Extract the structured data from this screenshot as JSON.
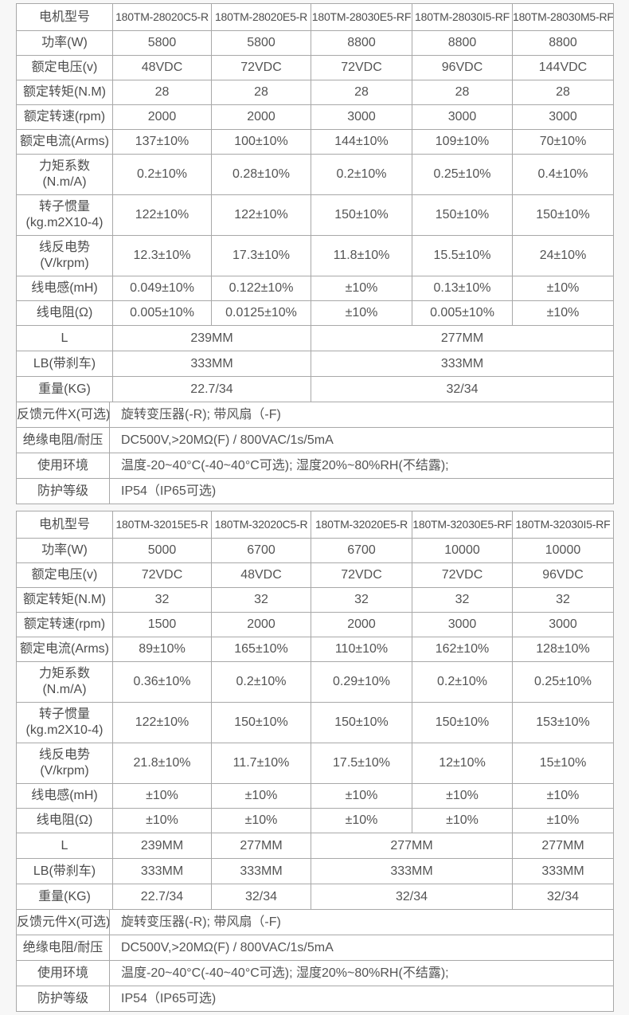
{
  "page": {
    "background_color": "#f7f7f7",
    "cell_background": "#ffffff",
    "border_color": "#a8a8a8",
    "text_color": "#545454"
  },
  "tables": [
    {
      "header": {
        "label": "电机型号",
        "models": [
          "180TM-28020C5-R",
          "180TM-28020E5-R",
          "180TM-28030E5-RF",
          "180TM-28030I5-RF",
          "180TM-28030M5-RF"
        ]
      },
      "rows": [
        {
          "label": "功率(W)",
          "values": [
            "5800",
            "5800",
            "8800",
            "8800",
            "8800"
          ]
        },
        {
          "label": "额定电压(v)",
          "values": [
            "48VDC",
            "72VDC",
            "72VDC",
            "96VDC",
            "144VDC"
          ]
        },
        {
          "label": "额定转矩(N.M)",
          "values": [
            "28",
            "28",
            "28",
            "28",
            "28"
          ]
        },
        {
          "label": "额定转速(rpm)",
          "values": [
            "2000",
            "2000",
            "3000",
            "3000",
            "3000"
          ]
        },
        {
          "label": "额定电流(Arms)",
          "values": [
            "137±10%",
            "100±10%",
            "144±10%",
            "109±10%",
            "70±10%"
          ]
        },
        {
          "label": "力矩系数",
          "label2": "(N.m/A)",
          "tall": true,
          "values": [
            "0.2±10%",
            "0.28±10%",
            "0.2±10%",
            "0.25±10%",
            "0.4±10%"
          ]
        },
        {
          "label": "转子惯量",
          "label2": "(kg.m2X10-4)",
          "tall": true,
          "values": [
            "122±10%",
            "122±10%",
            "150±10%",
            "150±10%",
            "150±10%"
          ]
        },
        {
          "label": "线反电势",
          "label2": "(V/krpm)",
          "tall": true,
          "values": [
            "12.3±10%",
            "17.3±10%",
            "11.8±10%",
            "15.5±10%",
            "24±10%"
          ]
        },
        {
          "label": "线电感(mH)",
          "values": [
            "0.049±10%",
            "0.122±10%",
            "±10%",
            "0.13±10%",
            "±10%"
          ]
        },
        {
          "label": "线电阻(Ω)",
          "values": [
            "0.005±10%",
            "0.0125±10%",
            "±10%",
            "0.005±10%",
            "±10%"
          ]
        },
        {
          "label": "L",
          "cells": [
            {
              "text": "239MM",
              "span": 2
            },
            {
              "text": "277MM",
              "span": 3
            }
          ]
        },
        {
          "label": "LB(带刹车)",
          "cells": [
            {
              "text": "333MM",
              "span": 2
            },
            {
              "text": "333MM",
              "span": 3
            }
          ]
        },
        {
          "label": "重量(KG)",
          "cells": [
            {
              "text": "22.7/34",
              "span": 2
            },
            {
              "text": "32/34",
              "span": 3
            }
          ]
        }
      ],
      "info_rows": [
        {
          "label": "反馈元件X(可选)",
          "value": "旋转变压器(-R); 带风扇（-F)"
        },
        {
          "label": "绝缘电阻/耐压",
          "value": "DC500V,>20MΩ(F) / 800VAC/1s/5mA"
        },
        {
          "label": "使用环境",
          "value": "温度-20~40°C(-40~40°C可选); 湿度20%~80%RH(不结露);"
        },
        {
          "label": "防护等级",
          "value": "IP54（IP65可选)"
        }
      ]
    },
    {
      "header": {
        "label": "电机型号",
        "models": [
          "180TM-32015E5-R",
          "180TM-32020C5-R",
          "180TM-32020E5-R",
          "180TM-32030E5-RF",
          "180TM-32030I5-RF"
        ]
      },
      "rows": [
        {
          "label": "功率(W)",
          "values": [
            "5000",
            "6700",
            "6700",
            "10000",
            "10000"
          ]
        },
        {
          "label": "额定电压(v)",
          "values": [
            "72VDC",
            "48VDC",
            "72VDC",
            "72VDC",
            "96VDC"
          ]
        },
        {
          "label": "额定转矩(N.M)",
          "values": [
            "32",
            "32",
            "32",
            "32",
            "32"
          ]
        },
        {
          "label": "额定转速(rpm)",
          "values": [
            "1500",
            "2000",
            "2000",
            "3000",
            "3000"
          ]
        },
        {
          "label": "额定电流(Arms)",
          "values": [
            "89±10%",
            "165±10%",
            "110±10%",
            "162±10%",
            "128±10%"
          ]
        },
        {
          "label": "力矩系数",
          "label2": "(N.m/A)",
          "tall": true,
          "values": [
            "0.36±10%",
            "0.2±10%",
            "0.29±10%",
            "0.2±10%",
            "0.25±10%"
          ]
        },
        {
          "label": "转子惯量",
          "label2": "(kg.m2X10-4)",
          "tall": true,
          "values": [
            "122±10%",
            "150±10%",
            "150±10%",
            "150±10%",
            "153±10%"
          ]
        },
        {
          "label": "线反电势",
          "label2": "(V/krpm)",
          "tall": true,
          "values": [
            "21.8±10%",
            "11.7±10%",
            "17.5±10%",
            "12±10%",
            "15±10%"
          ]
        },
        {
          "label": "线电感(mH)",
          "values": [
            "±10%",
            "±10%",
            "±10%",
            "±10%",
            "±10%"
          ]
        },
        {
          "label": "线电阻(Ω)",
          "values": [
            "±10%",
            "±10%",
            "±10%",
            "±10%",
            "±10%"
          ]
        },
        {
          "label": "L",
          "cells": [
            {
              "text": "239MM",
              "span": 1
            },
            {
              "text": "277MM",
              "span": 1
            },
            {
              "text": "277MM",
              "span": 2
            },
            {
              "text": "277MM",
              "span": 1
            }
          ]
        },
        {
          "label": "LB(带刹车)",
          "cells": [
            {
              "text": "333MM",
              "span": 1
            },
            {
              "text": "333MM",
              "span": 1
            },
            {
              "text": "333MM",
              "span": 2
            },
            {
              "text": "333MM",
              "span": 1
            }
          ]
        },
        {
          "label": "重量(KG)",
          "cells": [
            {
              "text": "22.7/34",
              "span": 1
            },
            {
              "text": "32/34",
              "span": 1
            },
            {
              "text": "32/34",
              "span": 2
            },
            {
              "text": "32/34",
              "span": 1
            }
          ]
        }
      ],
      "info_rows": [
        {
          "label": "反馈元件X(可选)",
          "value": "旋转变压器(-R); 带风扇（-F)"
        },
        {
          "label": "绝缘电阻/耐压",
          "value": "DC500V,>20MΩ(F) / 800VAC/1s/5mA"
        },
        {
          "label": "使用环境",
          "value": "温度-20~40°C(-40~40°C可选); 湿度20%~80%RH(不结露);"
        },
        {
          "label": "防护等级",
          "value": "IP54（IP65可选)"
        }
      ]
    }
  ]
}
